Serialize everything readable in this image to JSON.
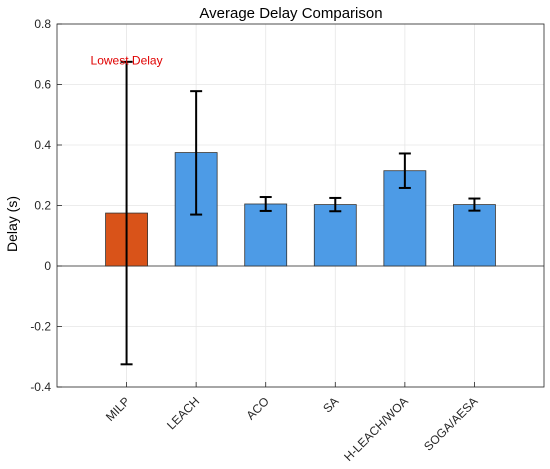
{
  "chart_data": {
    "type": "bar",
    "title": "Average Delay Comparison",
    "xlabel": "",
    "ylabel": "Delay (s)",
    "ylim": [
      -0.4,
      0.8
    ],
    "yticks": [
      -0.4,
      -0.2,
      0,
      0.2,
      0.4,
      0.6,
      0.8
    ],
    "ytick_labels": [
      "-0.4",
      "-0.2",
      "0",
      "0.2",
      "0.4",
      "0.6",
      "0.8"
    ],
    "grid": true,
    "categories": [
      "MILP",
      "LEACH",
      "ACO",
      "SA",
      "H-LEACH/WOA",
      "SOGA/AESA"
    ],
    "values": [
      0.175,
      0.375,
      0.205,
      0.203,
      0.315,
      0.203
    ],
    "error_low": [
      -0.325,
      0.17,
      0.182,
      0.181,
      0.258,
      0.183
    ],
    "error_high": [
      0.675,
      0.578,
      0.228,
      0.225,
      0.372,
      0.223
    ],
    "bar_colors": [
      "#d95319",
      "#4d9be6",
      "#4d9be6",
      "#4d9be6",
      "#4d9be6",
      "#4d9be6"
    ],
    "annotation": {
      "text": "Lowest Delay",
      "color": "#e00000",
      "x_category": "MILP",
      "y": 0.68
    }
  }
}
